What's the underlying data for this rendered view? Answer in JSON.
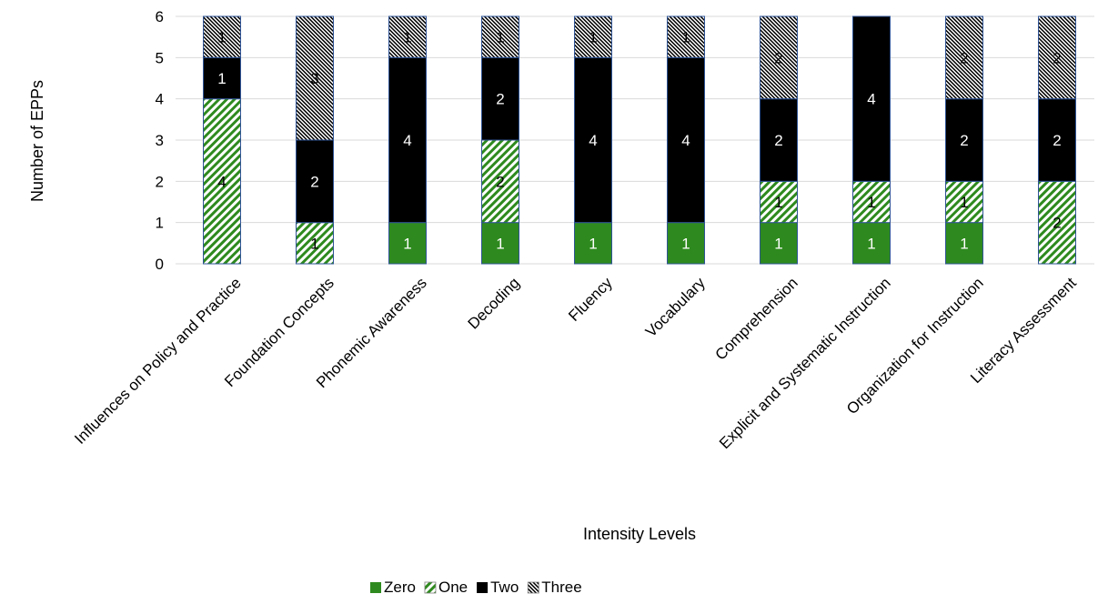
{
  "chart_data": {
    "type": "bar",
    "stacked": true,
    "title": "",
    "xlabel": "Intensity Levels",
    "ylabel": "Number of EPPs",
    "ylim": [
      0,
      6
    ],
    "yticks": [
      "0",
      "1",
      "2",
      "3",
      "4",
      "5",
      "6"
    ],
    "grid": "horizontal",
    "legend_position": "bottom",
    "categories": [
      "Influences on Policy and Practice",
      "Foundation Concepts",
      "Phonemic Awareness",
      "Decoding",
      "Fluency",
      "Vocabulary",
      "Comprehension",
      "Explicit and Systematic Instruction",
      "Organization for Instruction",
      "Literacy Assessment"
    ],
    "series": [
      {
        "name": "Zero",
        "values": [
          0,
          0,
          1,
          1,
          1,
          1,
          1,
          1,
          1,
          0
        ],
        "color": "#2e8a1e",
        "pattern": "solid"
      },
      {
        "name": "One",
        "values": [
          4,
          1,
          0,
          2,
          0,
          0,
          1,
          1,
          1,
          2
        ],
        "color": "#2e8a1e",
        "pattern": "diagonal-stripes"
      },
      {
        "name": "Two",
        "values": [
          1,
          2,
          4,
          2,
          4,
          4,
          2,
          4,
          2,
          2
        ],
        "color": "#000000",
        "pattern": "solid"
      },
      {
        "name": "Three",
        "values": [
          1,
          3,
          1,
          1,
          1,
          1,
          2,
          0,
          2,
          2
        ],
        "color": "#000000",
        "pattern": "fine-hatch"
      }
    ],
    "colors": {
      "gridline": "#d9d9d9",
      "bar_border": "#2f5496"
    }
  }
}
